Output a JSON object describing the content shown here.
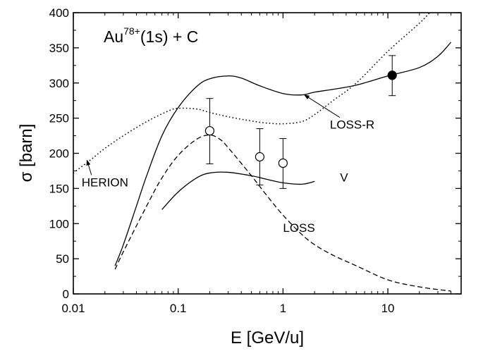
{
  "chart_data": {
    "type": "line",
    "title": "",
    "xlabel": "E [GeV/u]",
    "ylabel": "σ [barn]",
    "x_scale": "log",
    "xlim": [
      0.01,
      50
    ],
    "ylim": [
      0,
      400
    ],
    "x_ticks": [
      {
        "value": 0.01,
        "label": "0.01"
      },
      {
        "value": 0.1,
        "label": "0.1"
      },
      {
        "value": 1,
        "label": "1"
      },
      {
        "value": 10,
        "label": "10"
      }
    ],
    "y_ticks": [
      0,
      50,
      100,
      150,
      200,
      250,
      300,
      350,
      400
    ],
    "grid": false,
    "legend": "none",
    "annotation_text": {
      "base": "Au",
      "superscript": "78+",
      "rest": "(1s) + C"
    },
    "series": [
      {
        "name": "LOSS-R",
        "style": "solid",
        "points": [
          [
            0.025,
            40
          ],
          [
            0.03,
            70
          ],
          [
            0.04,
            125
          ],
          [
            0.05,
            168
          ],
          [
            0.07,
            225
          ],
          [
            0.1,
            265
          ],
          [
            0.15,
            295
          ],
          [
            0.2,
            306
          ],
          [
            0.3,
            310
          ],
          [
            0.4,
            307
          ],
          [
            0.6,
            296
          ],
          [
            1.0,
            285
          ],
          [
            1.5,
            283
          ],
          [
            2.0,
            287
          ],
          [
            3.0,
            291
          ],
          [
            5.0,
            297
          ],
          [
            10,
            310
          ],
          [
            20,
            322
          ],
          [
            30,
            338
          ],
          [
            40,
            358
          ]
        ]
      },
      {
        "name": "LOSS",
        "style": "dashed",
        "points": [
          [
            0.025,
            35
          ],
          [
            0.03,
            60
          ],
          [
            0.05,
            125
          ],
          [
            0.07,
            165
          ],
          [
            0.1,
            197
          ],
          [
            0.15,
            220
          ],
          [
            0.2,
            226
          ],
          [
            0.25,
            220
          ],
          [
            0.3,
            208
          ],
          [
            0.5,
            168
          ],
          [
            0.7,
            140
          ],
          [
            1.0,
            112
          ],
          [
            1.5,
            85
          ],
          [
            2.0,
            70
          ],
          [
            3.0,
            55
          ],
          [
            5.0,
            40
          ],
          [
            10,
            20
          ],
          [
            20,
            10
          ],
          [
            40,
            4
          ]
        ]
      },
      {
        "name": "V",
        "style": "solid",
        "points": [
          [
            0.07,
            120
          ],
          [
            0.1,
            145
          ],
          [
            0.15,
            165
          ],
          [
            0.2,
            172
          ],
          [
            0.3,
            173
          ],
          [
            0.5,
            168
          ],
          [
            0.7,
            163
          ],
          [
            1.0,
            158
          ],
          [
            1.5,
            156
          ],
          [
            2.0,
            160
          ]
        ]
      },
      {
        "name": "HERION",
        "style": "dotted",
        "points": [
          [
            0.01,
            172
          ],
          [
            0.015,
            192
          ],
          [
            0.02,
            207
          ],
          [
            0.03,
            225
          ],
          [
            0.05,
            245
          ],
          [
            0.08,
            260
          ],
          [
            0.1,
            264
          ],
          [
            0.15,
            263
          ],
          [
            0.2,
            258
          ],
          [
            0.3,
            252
          ],
          [
            0.5,
            246
          ],
          [
            0.7,
            243
          ],
          [
            1.0,
            242
          ],
          [
            1.5,
            245
          ],
          [
            2.0,
            255
          ],
          [
            3.0,
            275
          ],
          [
            5.0,
            300
          ],
          [
            10,
            345
          ],
          [
            20,
            385
          ],
          [
            25,
            400
          ]
        ]
      }
    ],
    "measurements": [
      {
        "marker": "open-circle",
        "x": 0.2,
        "y": 232,
        "y_low": 185,
        "y_high": 278
      },
      {
        "marker": "open-circle",
        "x": 0.6,
        "y": 195,
        "y_low": 155,
        "y_high": 235
      },
      {
        "marker": "open-circle",
        "x": 1.0,
        "y": 186,
        "y_low": 150,
        "y_high": 221
      },
      {
        "marker": "filled-circle",
        "x": 11,
        "y": 311,
        "y_low": 282,
        "y_high": 339
      }
    ],
    "curve_labels": [
      {
        "text": "LOSS-R",
        "x": 2.8,
        "y": 235,
        "arrow_to": [
          1.6,
          283
        ]
      },
      {
        "text": "V",
        "x": 3.5,
        "y": 160
      },
      {
        "text": "HERION",
        "x": 0.012,
        "y": 153,
        "arrow_to": [
          0.0135,
          190
        ]
      },
      {
        "text": "LOSS",
        "x": 1.0,
        "y": 88
      }
    ]
  }
}
